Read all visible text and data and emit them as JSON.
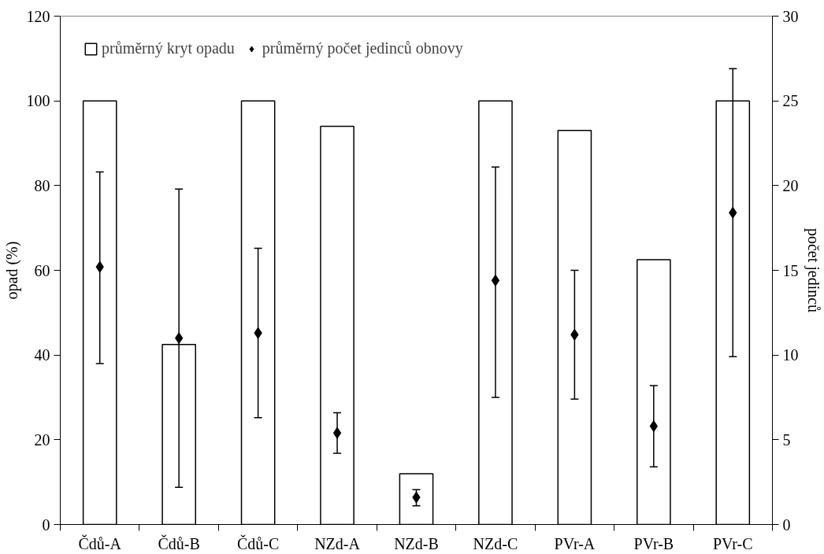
{
  "chart_data": {
    "type": "bar",
    "categories": [
      "Čdů-A",
      "Čdů-B",
      "Čdů-C",
      "NZd-A",
      "NZd-B",
      "NZd-C",
      "PVr-A",
      "PVr-B",
      "PVr-C"
    ],
    "series": [
      {
        "name": "průměrný kryt opadu",
        "color": "#ffffff",
        "values": [
          100,
          42.5,
          100,
          94,
          12,
          100,
          93,
          62.5,
          100
        ]
      },
      {
        "name": "průměrný počet jedinců obnovy",
        "type": "scatter",
        "axis": "y2",
        "color": "#000000",
        "values": [
          15.2,
          11.0,
          11.3,
          5.4,
          1.6,
          14.4,
          11.2,
          5.8,
          18.4
        ],
        "errors": [
          [
            9.5,
            20.8
          ],
          [
            2.2,
            19.8
          ],
          [
            6.3,
            16.3
          ],
          [
            4.2,
            6.6
          ],
          [
            1.1,
            2.05
          ],
          [
            7.5,
            21.1
          ],
          [
            7.4,
            15.0
          ],
          [
            3.4,
            8.2
          ],
          [
            9.9,
            26.9
          ]
        ]
      }
    ],
    "ylabel": "opad (%)",
    "y2label": "počet jedinců",
    "ylim": [
      0,
      120
    ],
    "yticks": [
      0,
      20,
      40,
      60,
      80,
      100,
      120
    ],
    "y2lim": [
      0,
      30
    ],
    "y2ticks": [
      0,
      5,
      10,
      15,
      20,
      25,
      30
    ],
    "marker": "diamond",
    "legend": "top left",
    "grid": false
  }
}
